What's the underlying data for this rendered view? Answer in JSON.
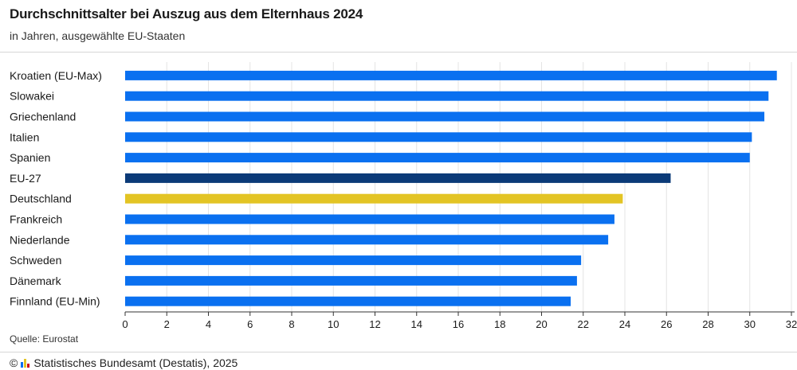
{
  "header": {
    "title": "Durchschnittsalter bei Auszug aus dem Elternhaus 2024",
    "subtitle": "in Jahren, ausgewählte EU-Staaten"
  },
  "footer": {
    "source": "Quelle: Eurostat",
    "copyright_symbol": "©",
    "publisher": "Statistisches Bundesamt (Destatis), 2025"
  },
  "colors": {
    "default": "#0a70f0",
    "eu": "#0b3a78",
    "germany": "#e3c424",
    "logo": [
      "#0a70f0",
      "#e3c424",
      "#d0021b"
    ]
  },
  "chart_data": {
    "type": "bar",
    "orientation": "horizontal",
    "title": "Durchschnittsalter bei Auszug aus dem Elternhaus 2024",
    "subtitle": "in Jahren, ausgewählte EU-Staaten",
    "categories": [
      "Kroatien (EU-Max)",
      "Slowakei",
      "Griechenland",
      "Italien",
      "Spanien",
      "EU-27",
      "Deutschland",
      "Frankreich",
      "Niederlande",
      "Schweden",
      "Dänemark",
      "Finnland (EU-Min)"
    ],
    "values": [
      31.3,
      30.9,
      30.7,
      30.1,
      30.0,
      26.2,
      23.9,
      23.5,
      23.2,
      21.9,
      21.7,
      21.4
    ],
    "highlight": {
      "EU-27": "eu",
      "Deutschland": "germany"
    },
    "xlim": [
      0,
      32
    ],
    "xticks": [
      "0",
      "2",
      "4",
      "6",
      "8",
      "10",
      "12",
      "14",
      "16",
      "18",
      "20",
      "22",
      "24",
      "26",
      "28",
      "30",
      "32"
    ],
    "grid": true
  }
}
